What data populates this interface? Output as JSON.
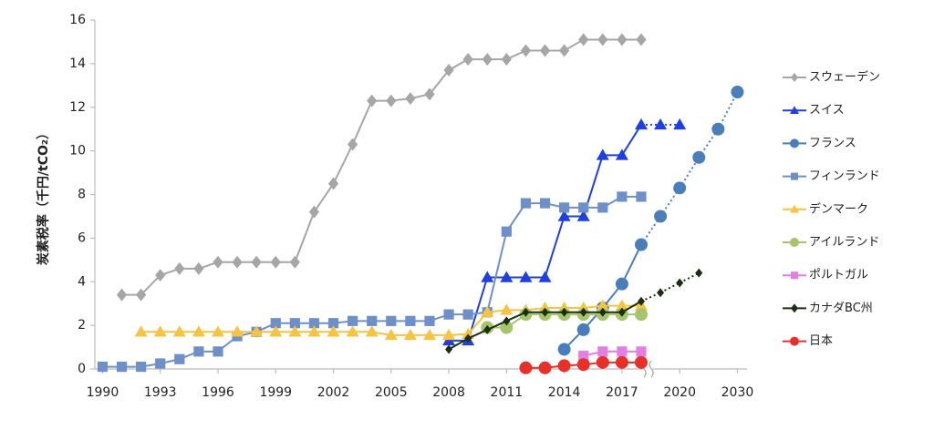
{
  "chart_data": {
    "type": "line",
    "y_label": "炭素税率（千円/tCO₂）",
    "x": [
      1990,
      1991,
      1992,
      1993,
      1994,
      1995,
      1996,
      1997,
      1998,
      1999,
      2000,
      2001,
      2002,
      2003,
      2004,
      2005,
      2006,
      2007,
      2008,
      2009,
      2010,
      2011,
      2012,
      2013,
      2014,
      2015,
      2016,
      2017,
      2018,
      2019,
      2020,
      2021,
      2022,
      2030
    ],
    "xlim": [
      1989.6,
      2030.5
    ],
    "x_break": [
      2022.5,
      2029.5
    ],
    "xticks": [
      1990,
      1993,
      1996,
      1999,
      2002,
      2005,
      2008,
      2011,
      2014,
      2017,
      2020,
      2030
    ],
    "ylim": [
      0,
      16
    ],
    "yticks": [
      0,
      2,
      4,
      6,
      8,
      10,
      12,
      14,
      16
    ],
    "grid": false,
    "legend": "right",
    "series": [
      {
        "name": "スウェーデン",
        "color": "#a6a6a6",
        "marker": "diamond",
        "values": [
          null,
          3.4,
          3.4,
          4.3,
          4.6,
          4.6,
          4.9,
          4.9,
          4.9,
          4.9,
          4.9,
          7.2,
          8.5,
          10.3,
          12.3,
          12.3,
          12.4,
          12.6,
          13.7,
          14.2,
          14.2,
          14.2,
          14.6,
          14.6,
          14.6,
          15.1,
          15.1,
          15.1,
          15.1,
          null,
          null,
          null,
          null,
          null
        ]
      },
      {
        "name": "スイス",
        "color": "#1f3fe0",
        "marker": "triangle",
        "dashed_from": 2018,
        "values": [
          null,
          null,
          null,
          null,
          null,
          null,
          null,
          null,
          null,
          null,
          null,
          null,
          null,
          null,
          null,
          null,
          null,
          null,
          1.3,
          1.3,
          4.2,
          4.2,
          4.2,
          4.2,
          7.0,
          7.0,
          9.8,
          9.8,
          11.2,
          11.2,
          11.2,
          null,
          null,
          null
        ]
      },
      {
        "name": "フランス",
        "color": "#4a7ebb",
        "marker": "circle",
        "dashed_from": 2018,
        "values": [
          null,
          null,
          null,
          null,
          null,
          null,
          null,
          null,
          null,
          null,
          null,
          null,
          null,
          null,
          null,
          null,
          null,
          null,
          null,
          null,
          null,
          null,
          null,
          null,
          0.9,
          1.8,
          2.8,
          3.9,
          5.7,
          7.0,
          8.3,
          9.7,
          11.0,
          12.7
        ]
      },
      {
        "name": "フィンランド",
        "color": "#6f8fc8",
        "marker": "square",
        "values": [
          0.1,
          0.1,
          0.1,
          0.25,
          0.45,
          0.8,
          0.8,
          1.5,
          1.7,
          2.1,
          2.1,
          2.1,
          2.1,
          2.2,
          2.2,
          2.2,
          2.2,
          2.2,
          2.5,
          2.5,
          2.6,
          6.3,
          7.6,
          7.6,
          7.4,
          7.4,
          7.4,
          7.9,
          7.9,
          null,
          null,
          null,
          null,
          null
        ]
      },
      {
        "name": "デンマーク",
        "color": "#f6c343",
        "marker": "triangle",
        "values": [
          null,
          null,
          1.7,
          1.7,
          1.7,
          1.7,
          1.7,
          1.7,
          1.7,
          1.7,
          1.7,
          1.7,
          1.7,
          1.7,
          1.7,
          1.55,
          1.55,
          1.55,
          1.55,
          1.6,
          2.6,
          2.7,
          2.7,
          2.8,
          2.8,
          2.8,
          2.9,
          2.9,
          2.9,
          null,
          null,
          null,
          null,
          null
        ]
      },
      {
        "name": "アイルランド",
        "color": "#a5c46b",
        "marker": "circle",
        "values": [
          null,
          null,
          null,
          null,
          null,
          null,
          null,
          null,
          null,
          null,
          null,
          null,
          null,
          null,
          null,
          null,
          null,
          null,
          null,
          null,
          1.9,
          1.9,
          2.5,
          2.5,
          2.5,
          2.5,
          2.5,
          2.5,
          2.5,
          null,
          null,
          null,
          null,
          null
        ]
      },
      {
        "name": "ポルトガル",
        "color": "#e37fe3",
        "marker": "square",
        "values": [
          null,
          null,
          null,
          null,
          null,
          null,
          null,
          null,
          null,
          null,
          null,
          null,
          null,
          null,
          null,
          null,
          null,
          null,
          null,
          null,
          null,
          null,
          null,
          null,
          null,
          0.6,
          0.8,
          0.8,
          0.8,
          null,
          null,
          null,
          null,
          null
        ]
      },
      {
        "name": "カナダBC州",
        "color": "#1a3010",
        "marker": "diamond",
        "dashed_from": 2018,
        "values": [
          null,
          null,
          null,
          null,
          null,
          null,
          null,
          null,
          null,
          null,
          null,
          null,
          null,
          null,
          null,
          null,
          null,
          null,
          0.9,
          1.4,
          1.8,
          2.2,
          2.6,
          2.6,
          2.6,
          2.6,
          2.6,
          2.6,
          3.1,
          3.5,
          3.95,
          4.4,
          null,
          null
        ]
      },
      {
        "name": "日本",
        "color": "#e8302a",
        "marker": "circle",
        "values": [
          null,
          null,
          null,
          null,
          null,
          null,
          null,
          null,
          null,
          null,
          null,
          null,
          null,
          null,
          null,
          null,
          null,
          null,
          null,
          null,
          null,
          null,
          0.05,
          0.05,
          0.15,
          0.2,
          0.3,
          0.3,
          0.3,
          null,
          null,
          null,
          null,
          null
        ]
      }
    ]
  }
}
